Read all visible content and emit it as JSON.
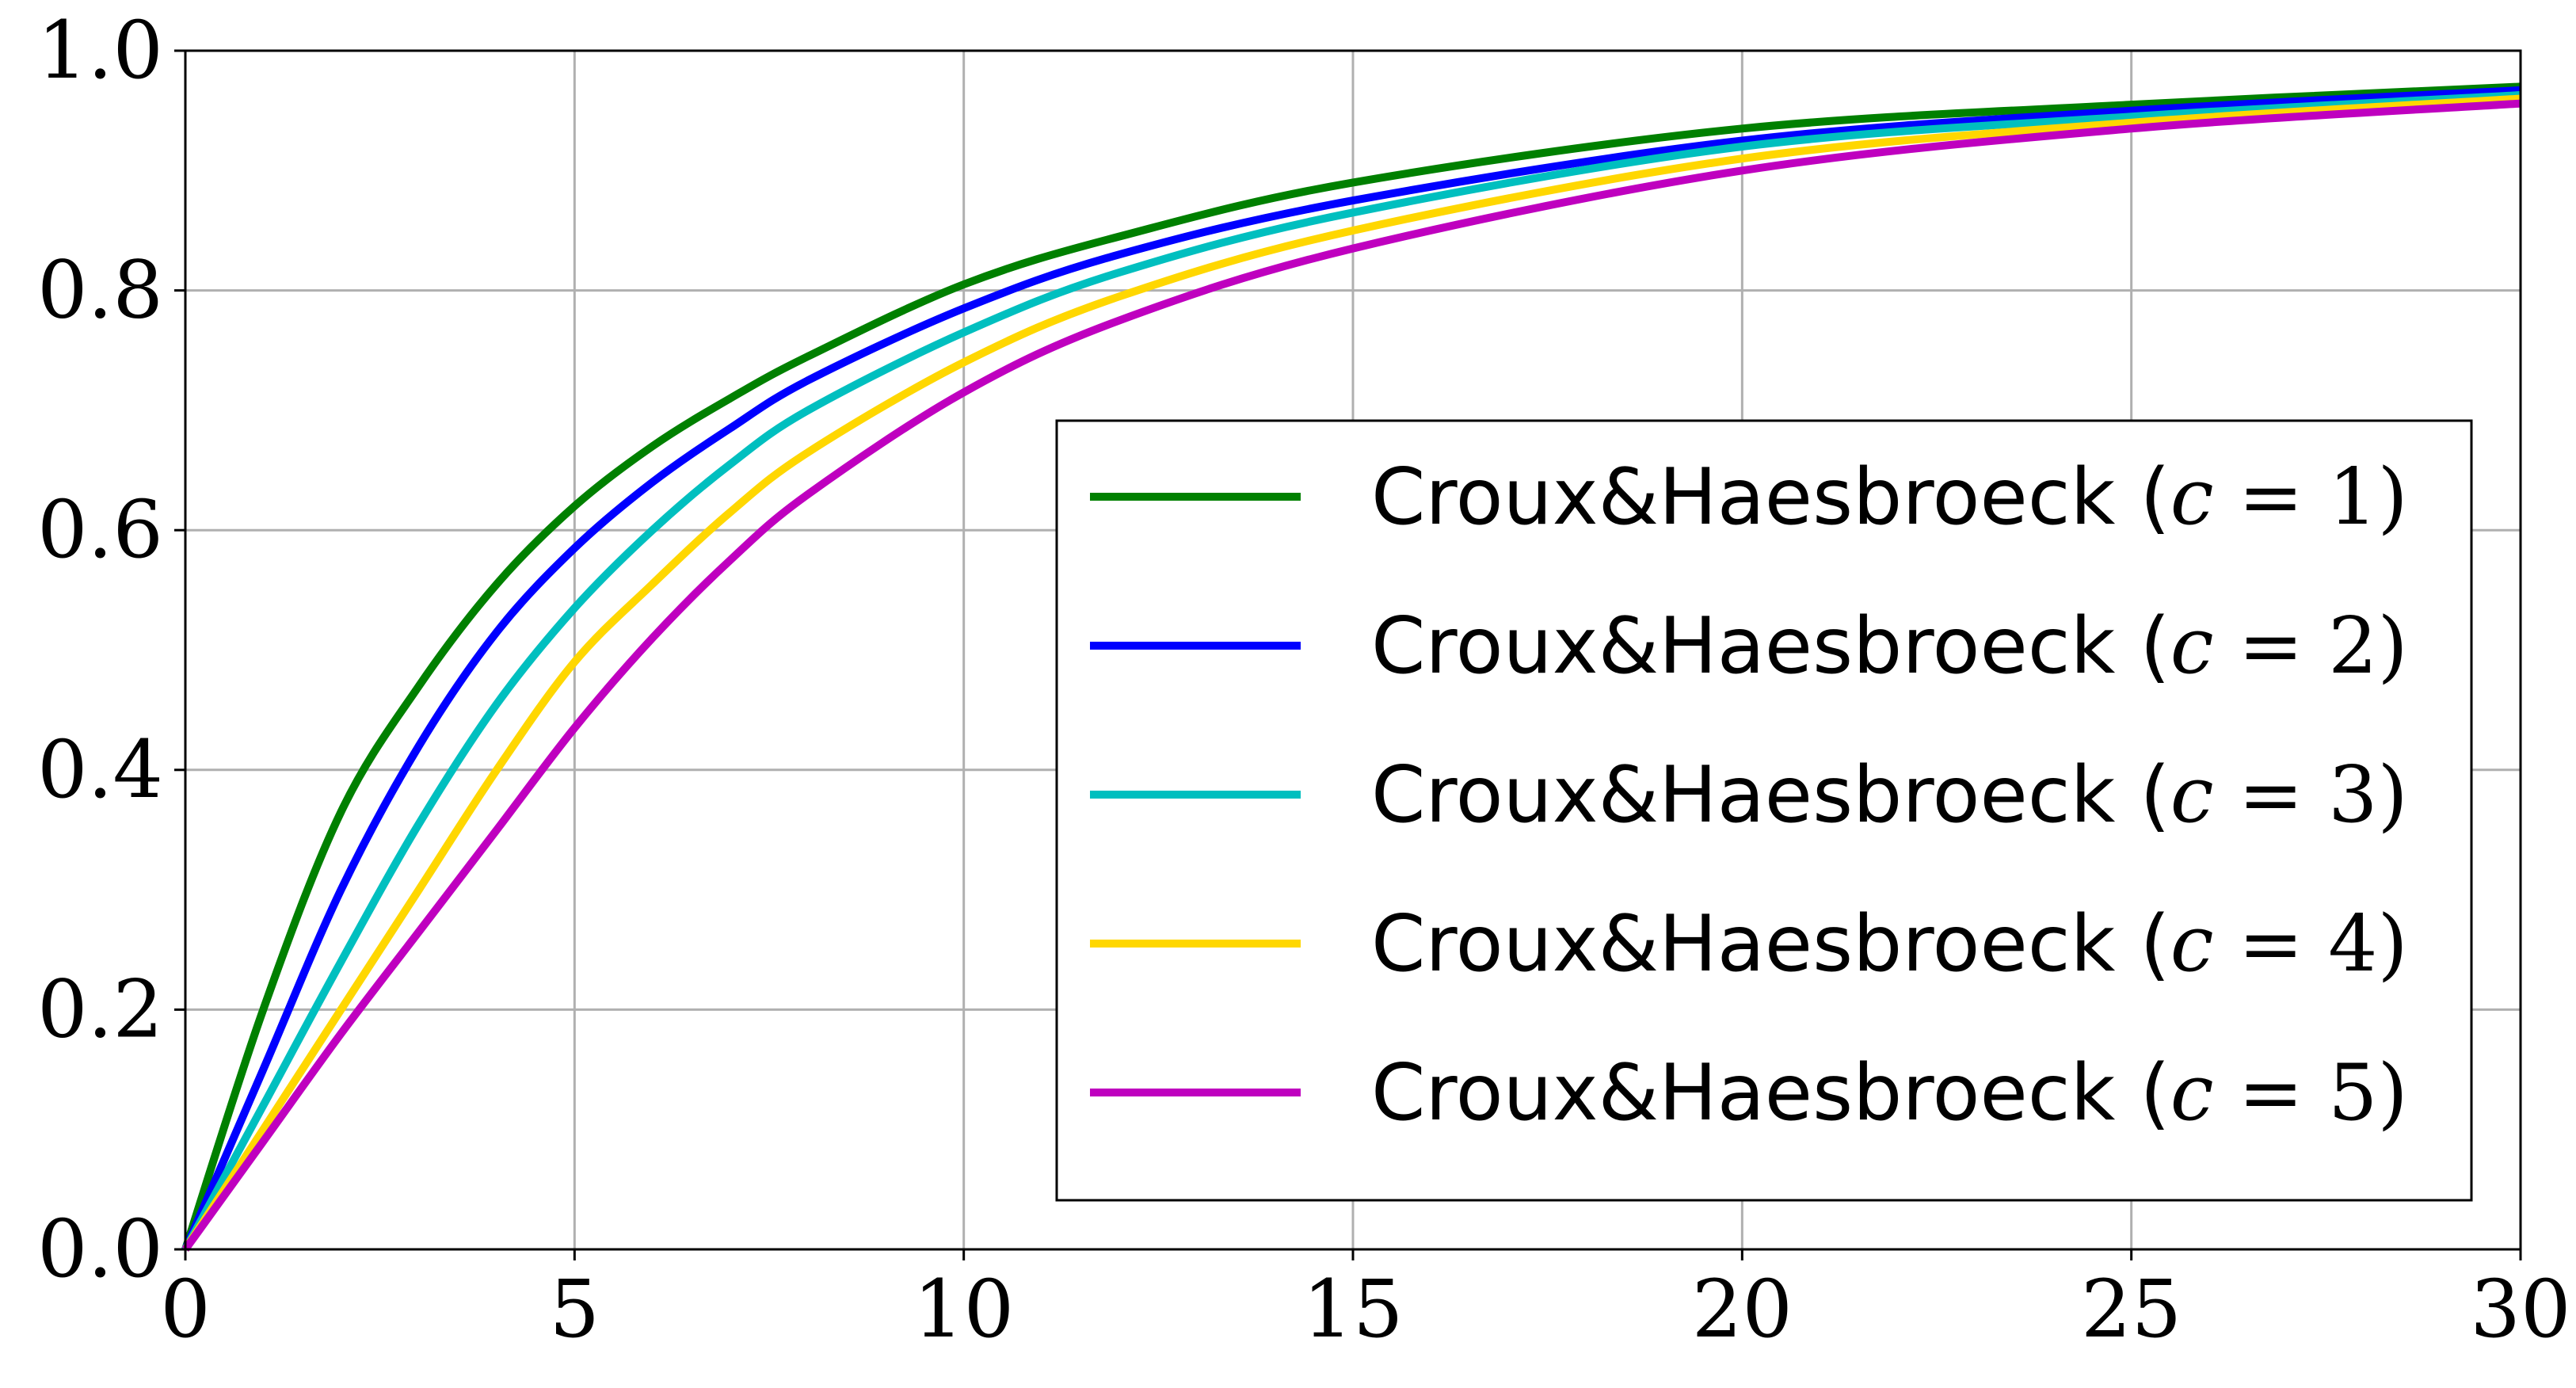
{
  "chart_data": {
    "type": "line",
    "title": "",
    "xlabel": "",
    "ylabel": "",
    "xlim": [
      0,
      30
    ],
    "ylim": [
      0.0,
      1.0
    ],
    "grid": true,
    "legend_position": "lower-right",
    "x_ticks": [
      "0",
      "5",
      "10",
      "15",
      "20",
      "25",
      "30"
    ],
    "y_ticks": [
      "0.0",
      "0.2",
      "0.4",
      "0.6",
      "0.8",
      "1.0"
    ],
    "x": [
      0,
      1,
      2,
      3,
      4,
      5,
      6,
      7,
      8,
      10,
      12,
      15,
      20,
      25,
      30
    ],
    "series": [
      {
        "name_prefix": "Croux&Haesbroeck (",
        "name_var": "c",
        "name_eq": " = ",
        "name_value": "1",
        "name_suffix": ")",
        "color": "#008000",
        "values": [
          0.0,
          0.2,
          0.365,
          0.47,
          0.555,
          0.62,
          0.67,
          0.71,
          0.745,
          0.805,
          0.845,
          0.89,
          0.935,
          0.955,
          0.97
        ]
      },
      {
        "name_prefix": "Croux&Haesbroeck (",
        "name_var": "c",
        "name_eq": " = ",
        "name_value": "2",
        "name_suffix": ")",
        "color": "#0000ff",
        "values": [
          0.0,
          0.15,
          0.3,
          0.42,
          0.515,
          0.585,
          0.64,
          0.685,
          0.725,
          0.785,
          0.83,
          0.875,
          0.925,
          0.95,
          0.967
        ]
      },
      {
        "name_prefix": "Croux&Haesbroeck (",
        "name_var": "c",
        "name_eq": " = ",
        "name_value": "3",
        "name_suffix": ")",
        "color": "#00bfbf",
        "values": [
          0.0,
          0.12,
          0.24,
          0.355,
          0.455,
          0.535,
          0.6,
          0.655,
          0.7,
          0.765,
          0.815,
          0.865,
          0.92,
          0.945,
          0.963
        ]
      },
      {
        "name_prefix": "Croux&Haesbroeck (",
        "name_var": "c",
        "name_eq": " = ",
        "name_value": "4",
        "name_suffix": ")",
        "color": "#ffd700",
        "values": [
          0.0,
          0.1,
          0.2,
          0.3,
          0.4,
          0.49,
          0.555,
          0.615,
          0.665,
          0.74,
          0.795,
          0.85,
          0.91,
          0.94,
          0.96
        ]
      },
      {
        "name_prefix": "Croux&Haesbroeck (",
        "name_var": "c",
        "name_eq": " = ",
        "name_value": "5",
        "name_suffix": ")",
        "color": "#bf00bf",
        "values": [
          0.0,
          0.09,
          0.18,
          0.265,
          0.35,
          0.435,
          0.51,
          0.575,
          0.63,
          0.715,
          0.775,
          0.835,
          0.9,
          0.935,
          0.956
        ]
      }
    ]
  }
}
